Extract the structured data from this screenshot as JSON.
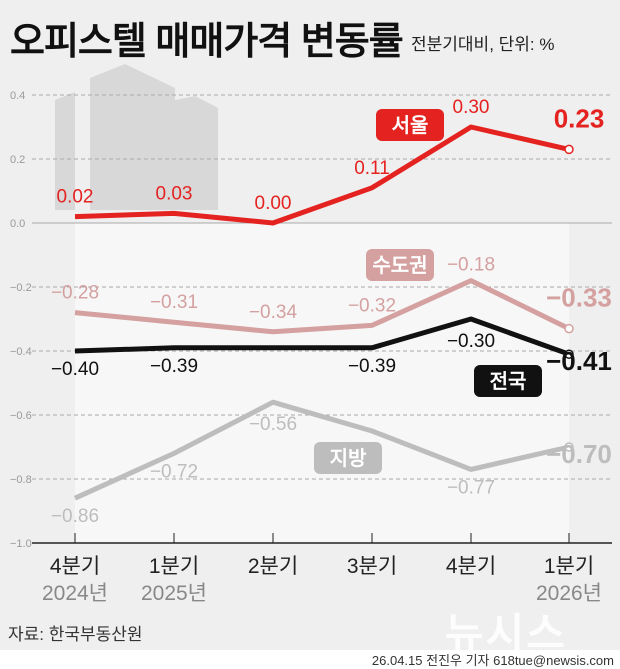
{
  "title": "오피스텔 매매가격 변동률",
  "subtitle": "전분기대비, 단위: %",
  "source": "자료: 한국부동산원",
  "credit": "26.04.15 전진우 기자 618tue@newsis.com",
  "logo": "뉴시스",
  "chart_data": {
    "type": "line",
    "categories": [
      "4분기",
      "1분기",
      "2분기",
      "3분기",
      "4분기",
      "1분기"
    ],
    "year_labels": [
      "2024년",
      "2025년",
      "",
      "",
      "",
      "2026년"
    ],
    "ylim": [
      -1.0,
      0.4
    ],
    "yticks": [
      "0.4",
      "0.2",
      "0.0",
      "-0.2",
      "-0.4",
      "-0.6",
      "-0.8",
      "-1.0"
    ],
    "ytick_values": [
      0.4,
      0.2,
      0,
      -0.2,
      -0.4,
      -0.6,
      -0.8,
      -1.0
    ],
    "grid": true,
    "series": [
      {
        "name": "서울",
        "color": "#e42320",
        "values": [
          0.02,
          0.03,
          0.0,
          0.11,
          0.3,
          0.23
        ],
        "labels": [
          "0.02",
          "0.03",
          "0.00",
          "0.11",
          "0.30",
          "0.23"
        ]
      },
      {
        "name": "수도권",
        "color": "#d4a0a0",
        "values": [
          -0.28,
          -0.31,
          -0.34,
          -0.32,
          -0.18,
          -0.33
        ],
        "labels": [
          "−0.28",
          "−0.31",
          "−0.34",
          "−0.32",
          "−0.18",
          "−0.33"
        ]
      },
      {
        "name": "전국",
        "color": "#111111",
        "values": [
          -0.4,
          -0.39,
          -0.39,
          -0.39,
          -0.3,
          -0.41
        ],
        "labels": [
          "−0.40",
          "−0.39",
          "",
          "−0.39",
          "−0.30",
          "−0.41"
        ]
      },
      {
        "name": "지방",
        "color": "#bdbdbd",
        "values": [
          -0.86,
          -0.72,
          -0.56,
          -0.65,
          -0.77,
          -0.7
        ],
        "labels": [
          "−0.86",
          "−0.72",
          "−0.56",
          "",
          "−0.77",
          "−0.70"
        ]
      }
    ]
  }
}
